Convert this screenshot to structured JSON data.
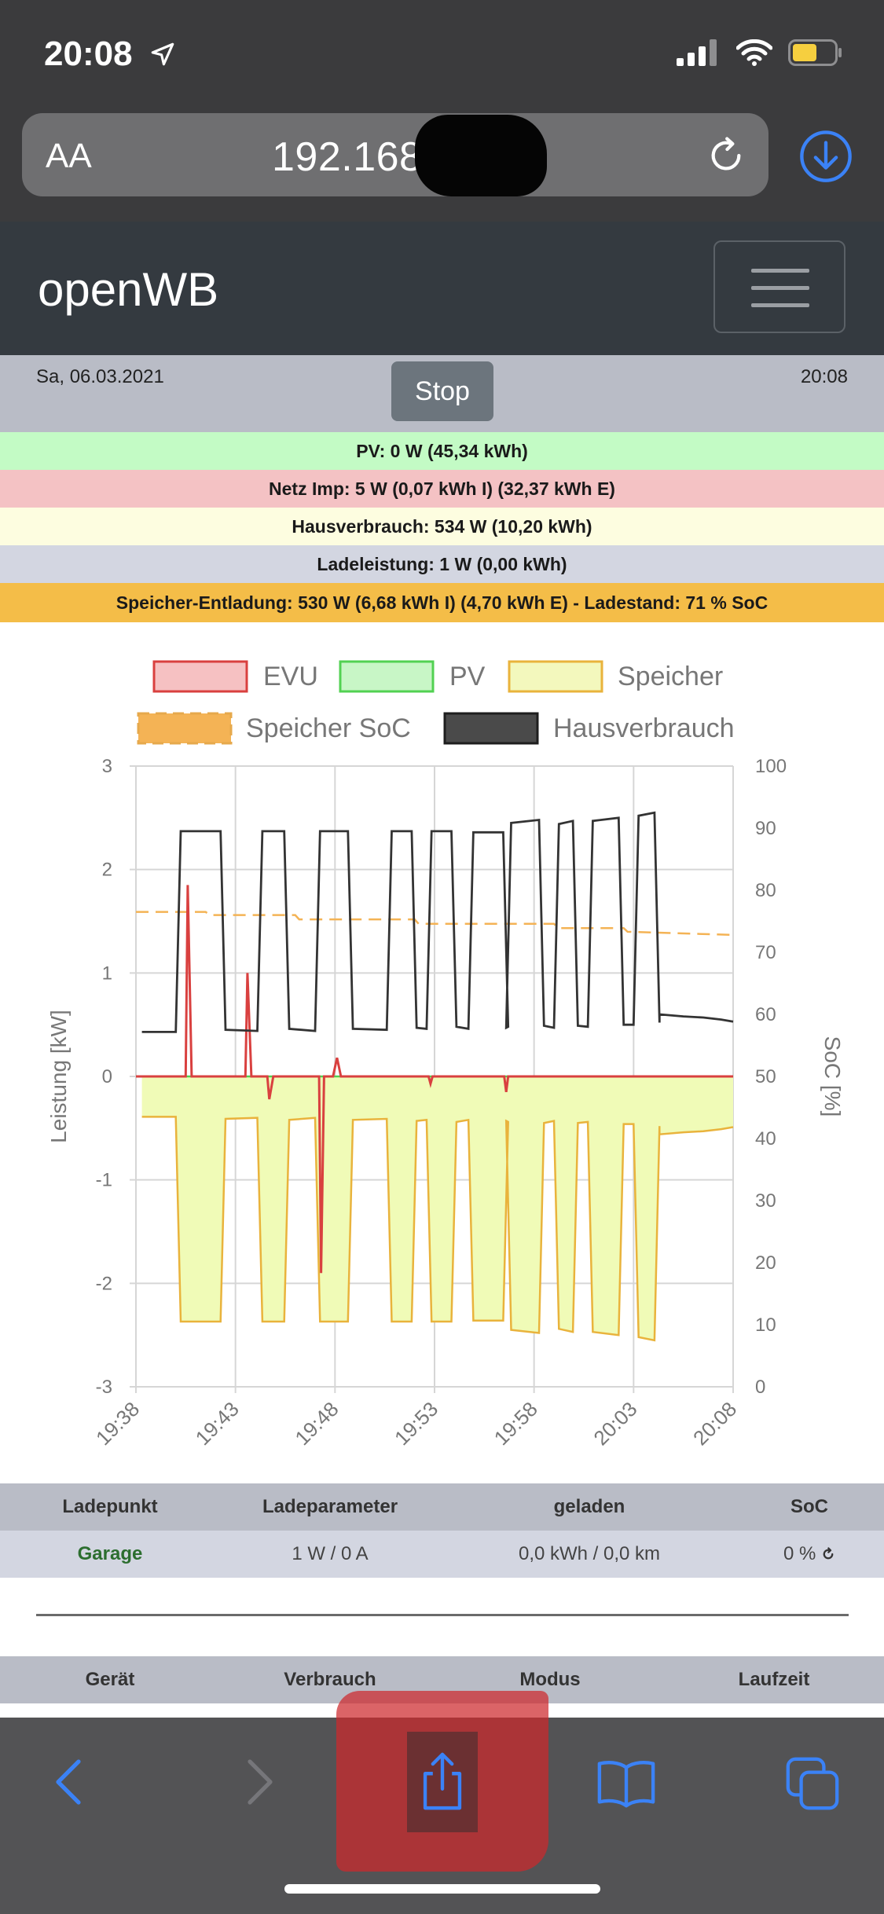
{
  "status_bar": {
    "time": "20:08"
  },
  "browser": {
    "text_size_label": "AA",
    "url": "192.168."
  },
  "navbar": {
    "brand": "openWB"
  },
  "header": {
    "date": "Sa, 06.03.2021",
    "stop_label": "Stop",
    "time": "20:08"
  },
  "info": {
    "pv": "PV: 0 W (45,34 kWh)",
    "netz": "Netz Imp: 5 W (0,07 kWh I) (32,37 kWh E)",
    "haus": "Hausverbrauch: 534 W (10,20 kWh)",
    "lade": "Ladeleistung: 1 W (0,00 kWh)",
    "speicher": "Speicher-Entladung: 530 W (6,68 kWh I) (4,70 kWh E) - Ladestand: 71 % SoC"
  },
  "chart_data": {
    "type": "line",
    "x_ticks": [
      "19:38",
      "19:43",
      "19:48",
      "19:53",
      "19:58",
      "20:03",
      "20:08"
    ],
    "ylabel": "Leistung [kW]",
    "ylim": [
      -3,
      3
    ],
    "y_ticks": [
      "3",
      "2",
      "1",
      "0",
      "-1",
      "-2",
      "-3"
    ],
    "y2label": "SoC [%]",
    "y2lim": [
      0,
      100
    ],
    "y2_ticks": [
      "100",
      "90",
      "80",
      "70",
      "60",
      "50",
      "40",
      "30",
      "20",
      "10",
      "0"
    ],
    "legend": [
      "EVU",
      "PV",
      "Speicher",
      "Speicher SoC",
      "Hausverbrauch"
    ],
    "legend_placement": "top",
    "grid": true,
    "colors": {
      "evu": "#d9403f",
      "pv": "#52d152",
      "speicher": "#e9b33c",
      "speicher_fill": "#f0fbb7",
      "soc": "#f4b355",
      "haus": "#333333"
    }
  },
  "table1": {
    "headers": [
      "Ladepunkt",
      "Ladeparameter",
      "geladen",
      "SoC"
    ],
    "row": [
      "Garage",
      "1 W / 0 A",
      "0,0 kWh / 0,0 km",
      "0 %"
    ]
  },
  "table2": {
    "headers": [
      "Gerät",
      "Verbrauch",
      "Modus",
      "Laufzeit"
    ]
  }
}
